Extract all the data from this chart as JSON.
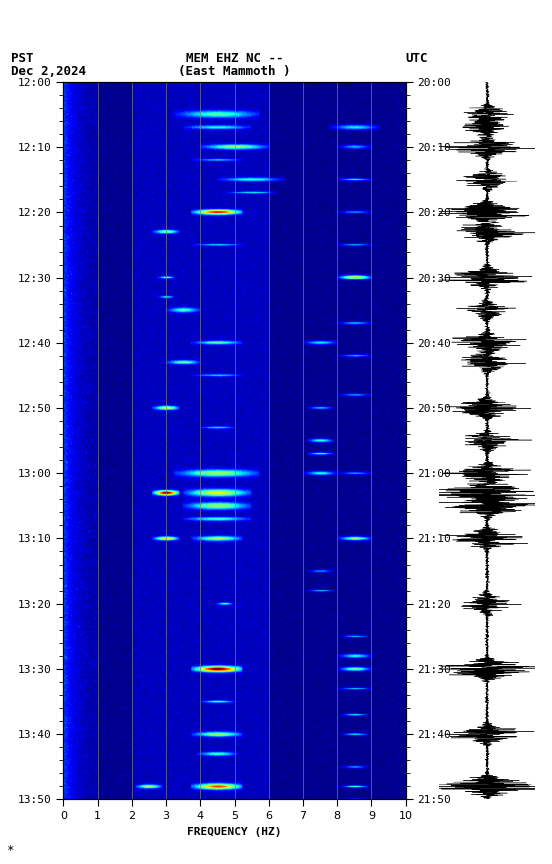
{
  "title_line1": "MEM EHZ NC --",
  "title_line2": "(East Mammoth )",
  "left_label": "PST",
  "right_label": "UTC",
  "date_label": "Dec 2,2024",
  "xlabel": "FREQUENCY (HZ)",
  "freq_min": 0,
  "freq_max": 10,
  "pst_ticks": [
    "12:00",
    "12:10",
    "12:20",
    "12:30",
    "12:40",
    "12:50",
    "13:00",
    "13:10",
    "13:20",
    "13:30",
    "13:40",
    "13:50"
  ],
  "utc_ticks": [
    "20:00",
    "20:10",
    "20:20",
    "20:30",
    "20:40",
    "20:50",
    "21:00",
    "21:10",
    "21:20",
    "21:30",
    "21:40",
    "21:50"
  ],
  "background_color": "#ffffff",
  "colormap": "jet",
  "vline_color": "#808080",
  "vline_positions": [
    1,
    2,
    3,
    4,
    5,
    6,
    7,
    8,
    9
  ],
  "fig_width": 5.52,
  "fig_height": 8.64,
  "n_time": 660,
  "n_freq": 300,
  "total_minutes": 110
}
